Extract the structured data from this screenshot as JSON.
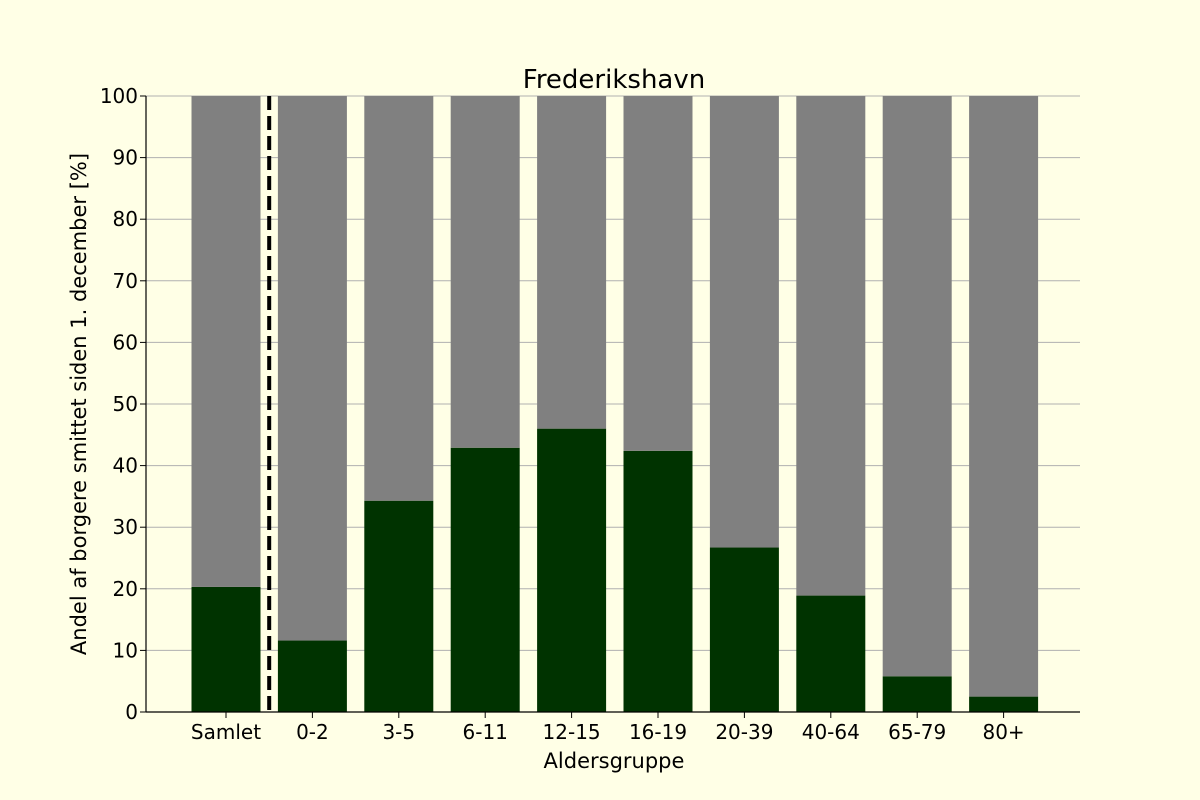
{
  "chart_data": {
    "type": "bar",
    "stacked": true,
    "title": "Frederikshavn",
    "xlabel": "Aldersgruppe",
    "ylabel": "Andel af borgere smittet siden 1. december [%]",
    "categories": [
      "Samlet",
      "0-2",
      "3-5",
      "6-11",
      "12-15",
      "16-19",
      "20-39",
      "40-64",
      "65-79",
      "80+"
    ],
    "series": [
      {
        "color": "#003300",
        "values": [
          20.3,
          11.6,
          34.3,
          42.9,
          46.0,
          42.4,
          26.7,
          18.9,
          5.8,
          2.5
        ]
      },
      {
        "color": "#808080",
        "values": [
          79.7,
          88.4,
          65.7,
          57.1,
          54.0,
          57.6,
          73.3,
          81.1,
          94.2,
          97.5
        ]
      }
    ],
    "ylim": [
      0,
      100
    ],
    "yticks": [
      0,
      10,
      20,
      30,
      40,
      50,
      60,
      70,
      80,
      90,
      100
    ],
    "grid": "horizontal",
    "separator_after_category": "Samlet",
    "background": "#ffffe6",
    "grid_color": "#b0b0b0"
  }
}
